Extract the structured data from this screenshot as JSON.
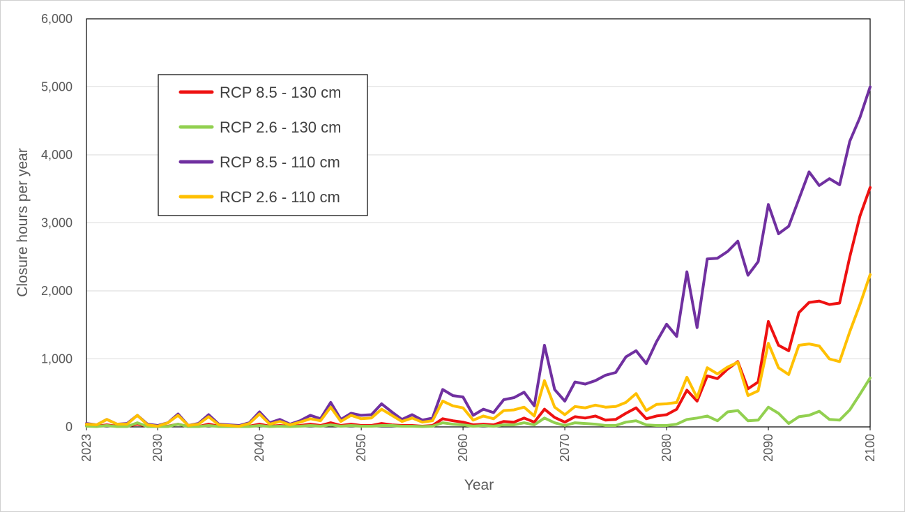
{
  "chart_data": {
    "type": "line",
    "title": "",
    "xlabel": "Year",
    "ylabel": "Closure hours per year",
    "xlim": [
      2023,
      2100
    ],
    "ylim": [
      0,
      6000
    ],
    "x_ticks": [
      2023,
      2030,
      2040,
      2050,
      2060,
      2070,
      2080,
      2090,
      2100
    ],
    "y_ticks": [
      0,
      1000,
      2000,
      3000,
      4000,
      5000,
      6000
    ],
    "y_tick_labels": [
      "0",
      "1,000",
      "2,000",
      "3,000",
      "4,000",
      "5,000",
      "6,000"
    ],
    "grid": "horizontal",
    "legend_position": "upper-left",
    "series": [
      {
        "name": "RCP 8.5 - 130 cm",
        "color": "#ee1111",
        "points": [
          [
            2023,
            20
          ],
          [
            2024,
            10
          ],
          [
            2025,
            30
          ],
          [
            2026,
            10
          ],
          [
            2027,
            10
          ],
          [
            2028,
            40
          ],
          [
            2029,
            10
          ],
          [
            2030,
            5
          ],
          [
            2031,
            10
          ],
          [
            2032,
            40
          ],
          [
            2033,
            5
          ],
          [
            2034,
            5
          ],
          [
            2035,
            40
          ],
          [
            2036,
            10
          ],
          [
            2037,
            5
          ],
          [
            2038,
            5
          ],
          [
            2039,
            10
          ],
          [
            2040,
            40
          ],
          [
            2041,
            10
          ],
          [
            2042,
            20
          ],
          [
            2043,
            10
          ],
          [
            2044,
            20
          ],
          [
            2045,
            40
          ],
          [
            2046,
            20
          ],
          [
            2047,
            60
          ],
          [
            2048,
            20
          ],
          [
            2049,
            40
          ],
          [
            2050,
            20
          ],
          [
            2051,
            20
          ],
          [
            2052,
            50
          ],
          [
            2053,
            30
          ],
          [
            2054,
            20
          ],
          [
            2055,
            20
          ],
          [
            2056,
            10
          ],
          [
            2057,
            20
          ],
          [
            2058,
            120
          ],
          [
            2059,
            90
          ],
          [
            2060,
            70
          ],
          [
            2061,
            30
          ],
          [
            2062,
            40
          ],
          [
            2063,
            30
          ],
          [
            2064,
            80
          ],
          [
            2065,
            70
          ],
          [
            2066,
            130
          ],
          [
            2067,
            70
          ],
          [
            2068,
            260
          ],
          [
            2069,
            140
          ],
          [
            2070,
            70
          ],
          [
            2071,
            150
          ],
          [
            2072,
            130
          ],
          [
            2073,
            160
          ],
          [
            2074,
            100
          ],
          [
            2075,
            110
          ],
          [
            2076,
            200
          ],
          [
            2077,
            280
          ],
          [
            2078,
            120
          ],
          [
            2079,
            160
          ],
          [
            2080,
            180
          ],
          [
            2081,
            260
          ],
          [
            2082,
            540
          ],
          [
            2083,
            380
          ],
          [
            2084,
            750
          ],
          [
            2085,
            710
          ],
          [
            2086,
            850
          ],
          [
            2087,
            960
          ],
          [
            2088,
            560
          ],
          [
            2089,
            660
          ],
          [
            2090,
            1550
          ],
          [
            2091,
            1200
          ],
          [
            2092,
            1120
          ],
          [
            2093,
            1680
          ],
          [
            2094,
            1830
          ],
          [
            2095,
            1850
          ],
          [
            2096,
            1800
          ],
          [
            2097,
            1820
          ],
          [
            2098,
            2500
          ],
          [
            2099,
            3100
          ],
          [
            2100,
            3520
          ]
        ]
      },
      {
        "name": "RCP 2.6 - 130 cm",
        "color": "#92d050",
        "points": [
          [
            2023,
            10
          ],
          [
            2024,
            5
          ],
          [
            2025,
            20
          ],
          [
            2026,
            5
          ],
          [
            2027,
            5
          ],
          [
            2028,
            60
          ],
          [
            2029,
            5
          ],
          [
            2030,
            5
          ],
          [
            2031,
            5
          ],
          [
            2032,
            40
          ],
          [
            2033,
            5
          ],
          [
            2034,
            5
          ],
          [
            2035,
            20
          ],
          [
            2036,
            5
          ],
          [
            2037,
            5
          ],
          [
            2038,
            5
          ],
          [
            2039,
            5
          ],
          [
            2040,
            20
          ],
          [
            2041,
            5
          ],
          [
            2042,
            10
          ],
          [
            2043,
            5
          ],
          [
            2044,
            10
          ],
          [
            2045,
            20
          ],
          [
            2046,
            10
          ],
          [
            2047,
            30
          ],
          [
            2048,
            10
          ],
          [
            2049,
            20
          ],
          [
            2050,
            10
          ],
          [
            2051,
            10
          ],
          [
            2052,
            20
          ],
          [
            2053,
            20
          ],
          [
            2054,
            10
          ],
          [
            2055,
            10
          ],
          [
            2056,
            5
          ],
          [
            2057,
            10
          ],
          [
            2058,
            60
          ],
          [
            2059,
            40
          ],
          [
            2060,
            30
          ],
          [
            2061,
            10
          ],
          [
            2062,
            20
          ],
          [
            2063,
            10
          ],
          [
            2064,
            30
          ],
          [
            2065,
            30
          ],
          [
            2066,
            60
          ],
          [
            2067,
            30
          ],
          [
            2068,
            130
          ],
          [
            2069,
            60
          ],
          [
            2070,
            20
          ],
          [
            2071,
            60
          ],
          [
            2072,
            50
          ],
          [
            2073,
            40
          ],
          [
            2074,
            20
          ],
          [
            2075,
            20
          ],
          [
            2076,
            70
          ],
          [
            2077,
            90
          ],
          [
            2078,
            30
          ],
          [
            2079,
            20
          ],
          [
            2080,
            20
          ],
          [
            2081,
            40
          ],
          [
            2082,
            110
          ],
          [
            2083,
            130
          ],
          [
            2084,
            160
          ],
          [
            2085,
            90
          ],
          [
            2086,
            220
          ],
          [
            2087,
            240
          ],
          [
            2088,
            90
          ],
          [
            2089,
            100
          ],
          [
            2090,
            290
          ],
          [
            2091,
            200
          ],
          [
            2092,
            50
          ],
          [
            2093,
            150
          ],
          [
            2094,
            170
          ],
          [
            2095,
            230
          ],
          [
            2096,
            110
          ],
          [
            2097,
            100
          ],
          [
            2098,
            250
          ],
          [
            2099,
            480
          ],
          [
            2100,
            720
          ]
        ]
      },
      {
        "name": "RCP 8.5 - 110 cm",
        "color": "#7030a0",
        "points": [
          [
            2023,
            50
          ],
          [
            2024,
            30
          ],
          [
            2025,
            110
          ],
          [
            2026,
            40
          ],
          [
            2027,
            50
          ],
          [
            2028,
            170
          ],
          [
            2029,
            40
          ],
          [
            2030,
            20
          ],
          [
            2031,
            60
          ],
          [
            2032,
            190
          ],
          [
            2033,
            20
          ],
          [
            2034,
            50
          ],
          [
            2035,
            180
          ],
          [
            2036,
            40
          ],
          [
            2037,
            30
          ],
          [
            2038,
            20
          ],
          [
            2039,
            60
          ],
          [
            2040,
            220
          ],
          [
            2041,
            60
          ],
          [
            2042,
            110
          ],
          [
            2043,
            40
          ],
          [
            2044,
            90
          ],
          [
            2045,
            170
          ],
          [
            2046,
            120
          ],
          [
            2047,
            360
          ],
          [
            2048,
            110
          ],
          [
            2049,
            200
          ],
          [
            2050,
            170
          ],
          [
            2051,
            180
          ],
          [
            2052,
            340
          ],
          [
            2053,
            220
          ],
          [
            2054,
            110
          ],
          [
            2055,
            180
          ],
          [
            2056,
            100
          ],
          [
            2057,
            130
          ],
          [
            2058,
            550
          ],
          [
            2059,
            460
          ],
          [
            2060,
            440
          ],
          [
            2061,
            170
          ],
          [
            2062,
            260
          ],
          [
            2063,
            210
          ],
          [
            2064,
            400
          ],
          [
            2065,
            430
          ],
          [
            2066,
            510
          ],
          [
            2067,
            310
          ],
          [
            2068,
            1200
          ],
          [
            2069,
            550
          ],
          [
            2070,
            380
          ],
          [
            2071,
            660
          ],
          [
            2072,
            630
          ],
          [
            2073,
            680
          ],
          [
            2074,
            760
          ],
          [
            2075,
            800
          ],
          [
            2076,
            1030
          ],
          [
            2077,
            1120
          ],
          [
            2078,
            930
          ],
          [
            2079,
            1250
          ],
          [
            2080,
            1510
          ],
          [
            2081,
            1330
          ],
          [
            2082,
            2280
          ],
          [
            2083,
            1460
          ],
          [
            2084,
            2470
          ],
          [
            2085,
            2480
          ],
          [
            2086,
            2580
          ],
          [
            2087,
            2730
          ],
          [
            2088,
            2230
          ],
          [
            2089,
            2430
          ],
          [
            2090,
            3270
          ],
          [
            2091,
            2840
          ],
          [
            2092,
            2950
          ],
          [
            2093,
            3350
          ],
          [
            2094,
            3750
          ],
          [
            2095,
            3550
          ],
          [
            2096,
            3650
          ],
          [
            2097,
            3560
          ],
          [
            2098,
            4200
          ],
          [
            2099,
            4550
          ],
          [
            2100,
            5000
          ]
        ]
      },
      {
        "name": "RCP 2.6 - 110 cm",
        "color": "#ffc000",
        "points": [
          [
            2023,
            40
          ],
          [
            2024,
            30
          ],
          [
            2025,
            110
          ],
          [
            2026,
            40
          ],
          [
            2027,
            40
          ],
          [
            2028,
            170
          ],
          [
            2029,
            30
          ],
          [
            2030,
            10
          ],
          [
            2031,
            60
          ],
          [
            2032,
            170
          ],
          [
            2033,
            20
          ],
          [
            2034,
            40
          ],
          [
            2035,
            150
          ],
          [
            2036,
            30
          ],
          [
            2037,
            20
          ],
          [
            2038,
            10
          ],
          [
            2039,
            50
          ],
          [
            2040,
            190
          ],
          [
            2041,
            40
          ],
          [
            2042,
            80
          ],
          [
            2043,
            30
          ],
          [
            2044,
            70
          ],
          [
            2045,
            120
          ],
          [
            2046,
            90
          ],
          [
            2047,
            290
          ],
          [
            2048,
            80
          ],
          [
            2049,
            170
          ],
          [
            2050,
            120
          ],
          [
            2051,
            130
          ],
          [
            2052,
            260
          ],
          [
            2053,
            170
          ],
          [
            2054,
            80
          ],
          [
            2055,
            130
          ],
          [
            2056,
            70
          ],
          [
            2057,
            90
          ],
          [
            2058,
            380
          ],
          [
            2059,
            310
          ],
          [
            2060,
            280
          ],
          [
            2061,
            100
          ],
          [
            2062,
            160
          ],
          [
            2063,
            120
          ],
          [
            2064,
            240
          ],
          [
            2065,
            250
          ],
          [
            2066,
            290
          ],
          [
            2067,
            160
          ],
          [
            2068,
            680
          ],
          [
            2069,
            290
          ],
          [
            2070,
            180
          ],
          [
            2071,
            300
          ],
          [
            2072,
            280
          ],
          [
            2073,
            320
          ],
          [
            2074,
            290
          ],
          [
            2075,
            300
          ],
          [
            2076,
            360
          ],
          [
            2077,
            490
          ],
          [
            2078,
            240
          ],
          [
            2079,
            330
          ],
          [
            2080,
            340
          ],
          [
            2081,
            360
          ],
          [
            2082,
            730
          ],
          [
            2083,
            430
          ],
          [
            2084,
            870
          ],
          [
            2085,
            780
          ],
          [
            2086,
            880
          ],
          [
            2087,
            950
          ],
          [
            2088,
            460
          ],
          [
            2089,
            530
          ],
          [
            2090,
            1230
          ],
          [
            2091,
            870
          ],
          [
            2092,
            770
          ],
          [
            2093,
            1200
          ],
          [
            2094,
            1220
          ],
          [
            2095,
            1190
          ],
          [
            2096,
            1000
          ],
          [
            2097,
            960
          ],
          [
            2098,
            1400
          ],
          [
            2099,
            1800
          ],
          [
            2100,
            2240
          ]
        ]
      }
    ]
  }
}
